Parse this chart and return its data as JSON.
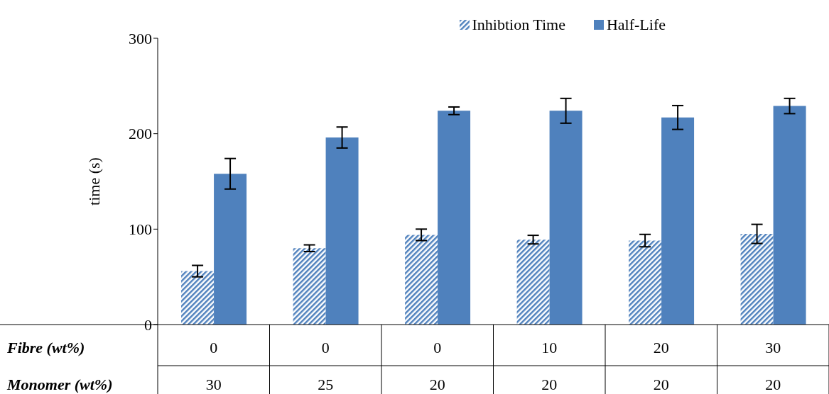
{
  "chart_data": {
    "type": "bar",
    "ylabel": "time (s)",
    "categories": [
      "0",
      "0",
      "0",
      "10",
      "20",
      "30"
    ],
    "series": [
      {
        "name": "Inhibtion Time",
        "color": "#4f81bd",
        "values": [
          56,
          80,
          94,
          89,
          88,
          95
        ],
        "errors": [
          6,
          3.5,
          6,
          4.5,
          6.5,
          10
        ]
      },
      {
        "name": "Half-Life",
        "color": "#4f81bd",
        "values": [
          158,
          196,
          224,
          224,
          217,
          229
        ],
        "errors": [
          16,
          11,
          4,
          13,
          12.5,
          8
        ]
      }
    ],
    "ylim": [
      0,
      300
    ],
    "yticks": [
      0,
      100,
      200,
      300
    ],
    "grid": false,
    "legend": "top right",
    "annotations": [
      "Fibre (wt%)",
      "Monomer (wt%)",
      "30",
      "25",
      "20",
      "20",
      "20",
      "20"
    ]
  }
}
